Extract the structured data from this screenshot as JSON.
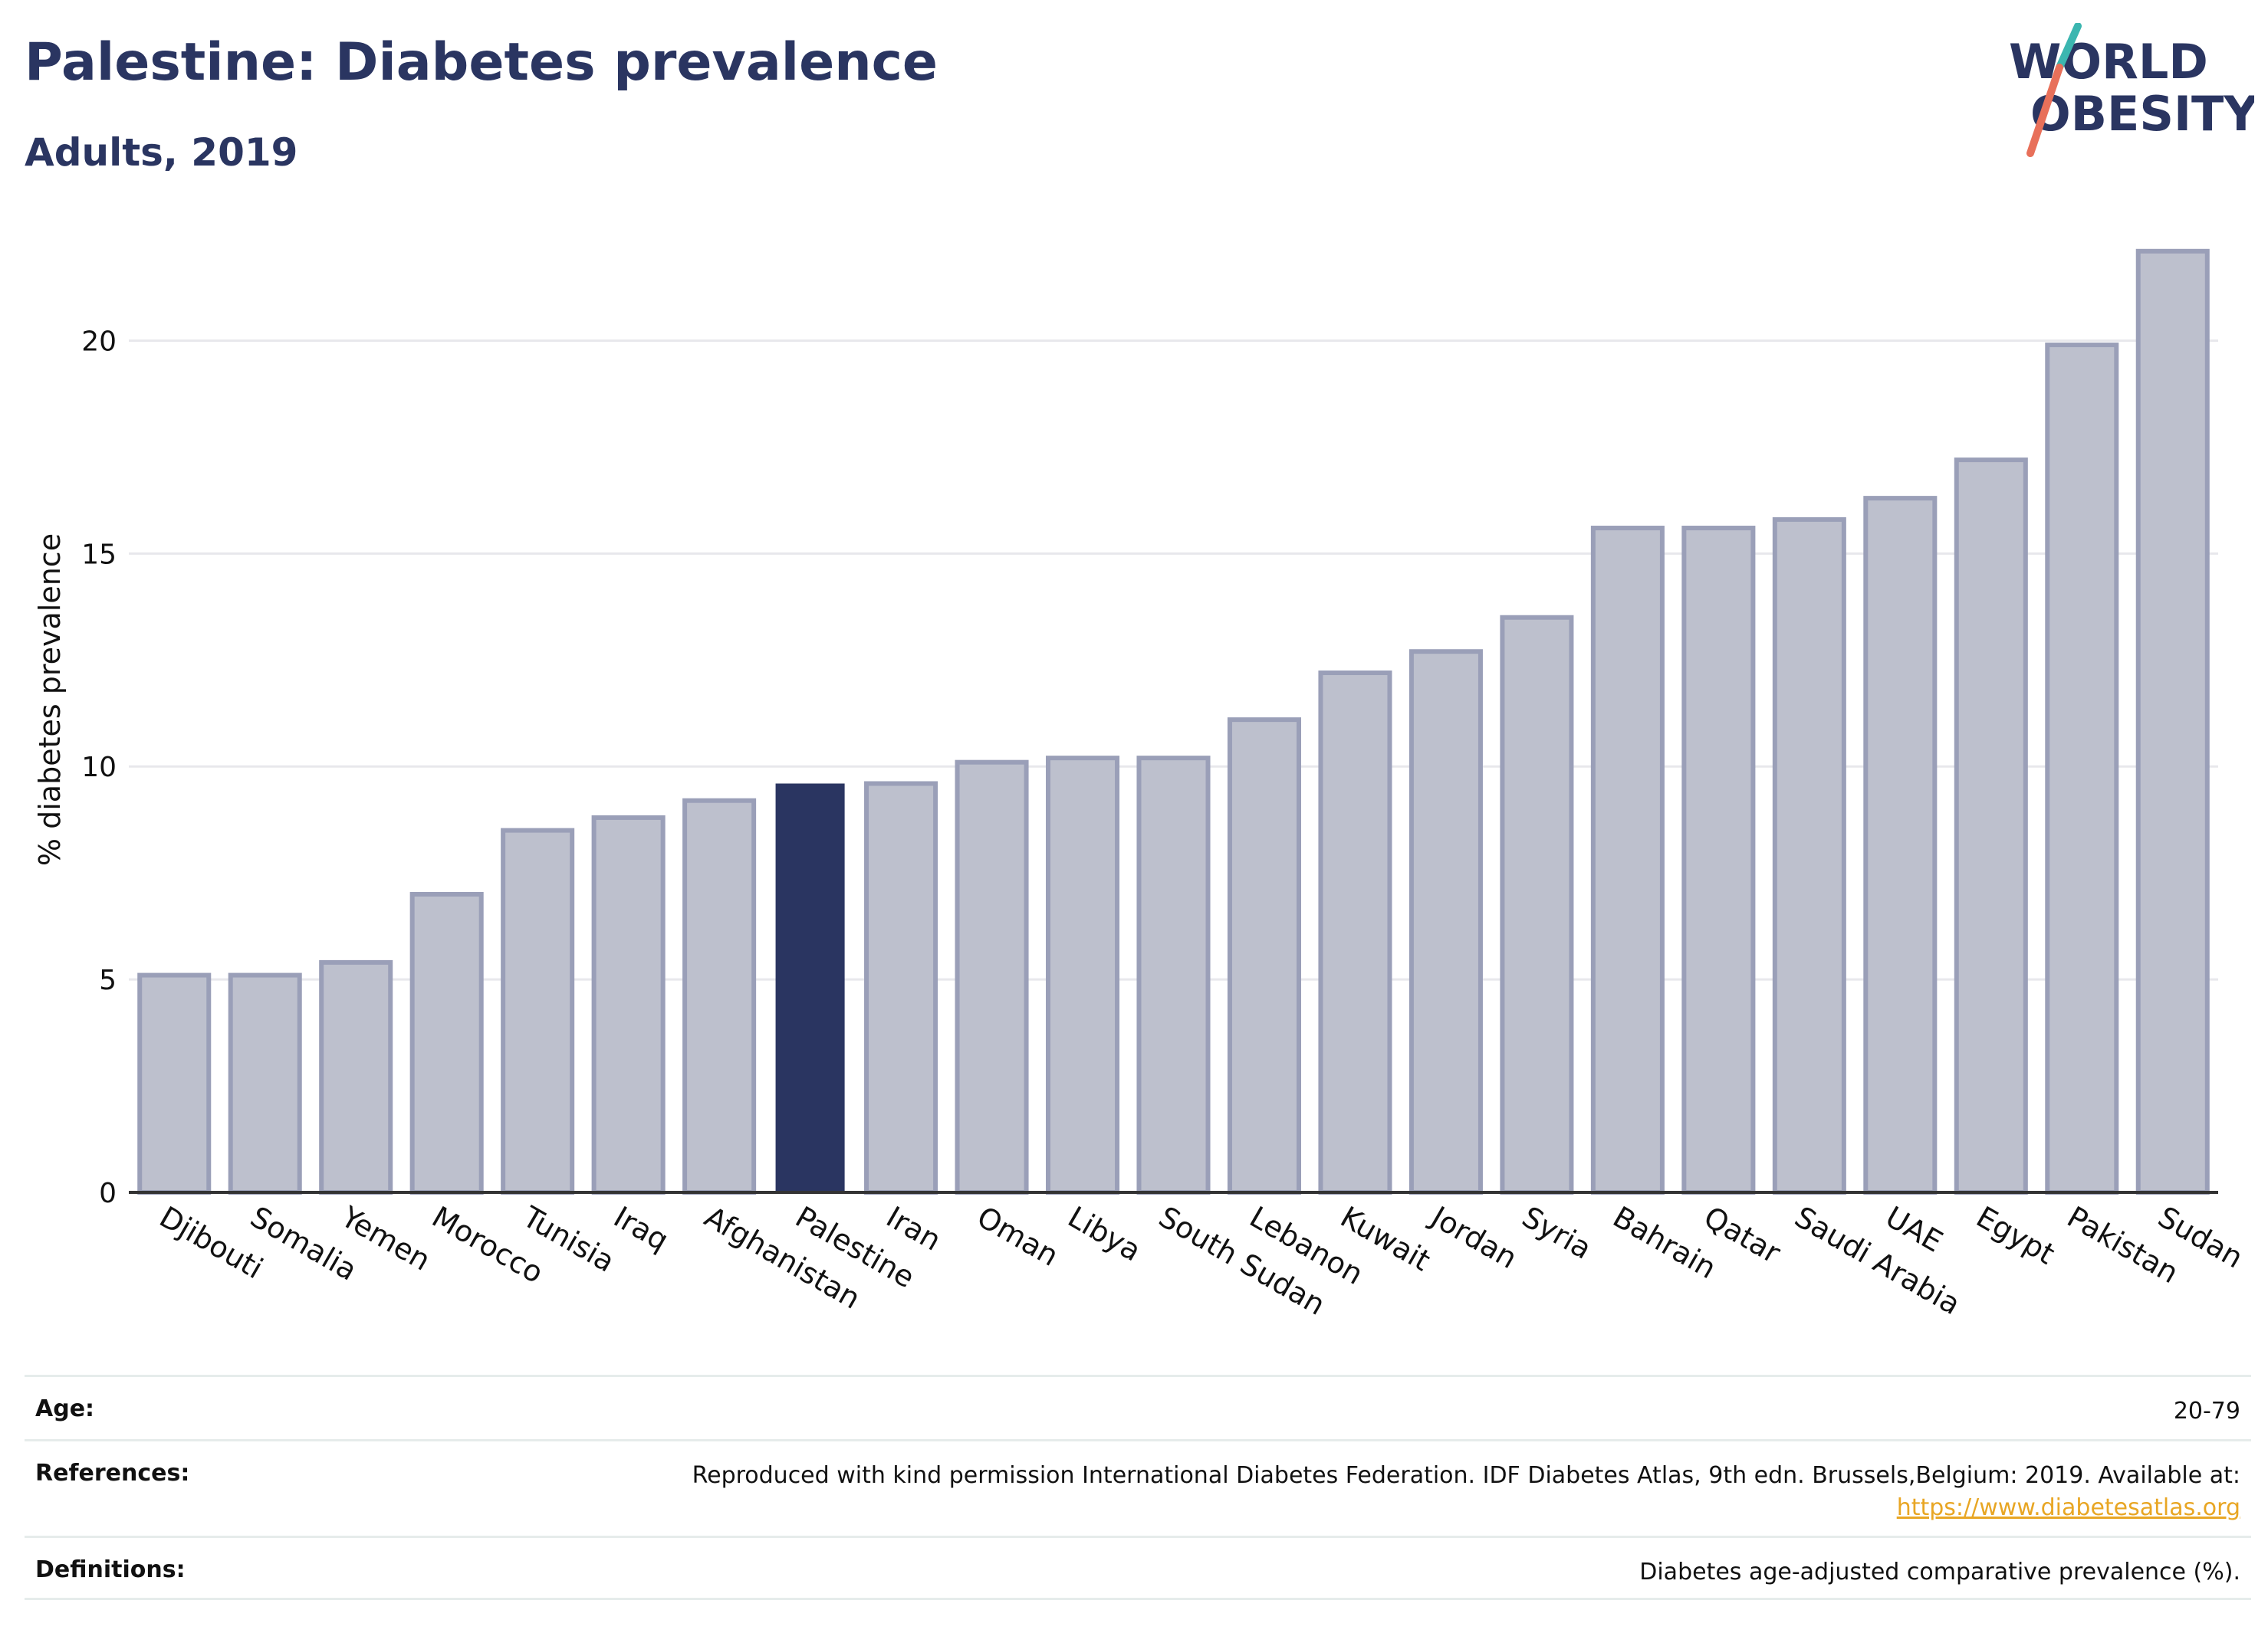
{
  "header": {
    "title": "Palestine: Diabetes prevalence",
    "subtitle": "Adults, 2019"
  },
  "logo": {
    "line1": "WORLD",
    "line2": "OBESITY",
    "colors": {
      "text": "#2a3561",
      "slash_teal": "#3bb6b0",
      "slash_coral": "#e8705a"
    }
  },
  "chart_data": {
    "type": "bar",
    "ylabel": "% diabetes prevalence",
    "ylim": [
      0,
      22.6
    ],
    "yticks": [
      0,
      5,
      10,
      15,
      20
    ],
    "grid": true,
    "categories": [
      "Djibouti",
      "Somalia",
      "Yemen",
      "Morocco",
      "Tunisia",
      "Iraq",
      "Afghanistan",
      "Palestine",
      "Iran",
      "Oman",
      "Libya",
      "South Sudan",
      "Lebanon",
      "Kuwait",
      "Jordan",
      "Syria",
      "Bahrain",
      "Qatar",
      "Saudi Arabia",
      "UAE",
      "Egypt",
      "Pakistan",
      "Sudan"
    ],
    "values": [
      5.1,
      5.1,
      5.4,
      7.0,
      8.5,
      8.8,
      9.2,
      9.6,
      9.6,
      10.1,
      10.2,
      10.2,
      11.1,
      12.2,
      12.7,
      13.5,
      15.6,
      15.6,
      15.8,
      16.3,
      17.2,
      19.9,
      22.1
    ],
    "highlight": "Palestine",
    "colors": {
      "bar_fill": "#bdc0cd",
      "bar_stroke": "#9a9fb8",
      "highlight_fill": "#2a3561",
      "grid": "#e8e8ec",
      "axis": "#333333"
    }
  },
  "info": {
    "age_label": "Age:",
    "age_value": "20-79",
    "references_label": "References:",
    "references_value": "Reproduced with kind permission International Diabetes Federation. IDF Diabetes Atlas, 9th edn. Brussels,Belgium: 2019. Available at:",
    "references_link": "https://www.diabetesatlas.org",
    "definitions_label": "Definitions:",
    "definitions_value": "Diabetes age-adjusted comparative prevalence (%)."
  }
}
